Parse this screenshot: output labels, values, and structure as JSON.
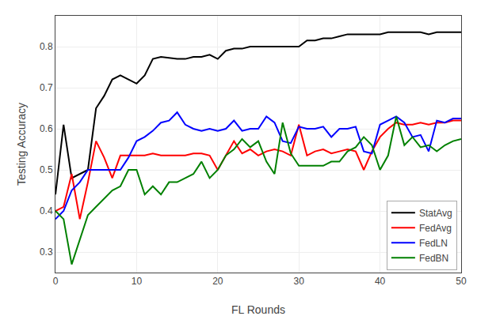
{
  "chart_data": {
    "type": "line",
    "x_label": "FL Rounds",
    "y_label": "Testing Accuracy",
    "x": [
      0,
      1,
      2,
      3,
      4,
      5,
      6,
      7,
      8,
      9,
      10,
      11,
      12,
      13,
      14,
      15,
      16,
      17,
      18,
      19,
      20,
      21,
      22,
      23,
      24,
      25,
      26,
      27,
      28,
      29,
      30,
      31,
      32,
      33,
      34,
      35,
      36,
      37,
      38,
      39,
      40,
      41,
      42,
      43,
      44,
      45,
      46,
      47,
      48,
      49,
      50
    ],
    "series": [
      {
        "name": "StatAvg",
        "color": "black",
        "values": [
          0.44,
          0.61,
          0.48,
          0.49,
          0.5,
          0.65,
          0.68,
          0.72,
          0.73,
          0.72,
          0.71,
          0.73,
          0.77,
          0.775,
          0.773,
          0.77,
          0.77,
          0.775,
          0.775,
          0.78,
          0.77,
          0.79,
          0.795,
          0.795,
          0.8,
          0.8,
          0.8,
          0.8,
          0.8,
          0.8,
          0.8,
          0.815,
          0.815,
          0.82,
          0.82,
          0.825,
          0.83,
          0.83,
          0.83,
          0.83,
          0.83,
          0.835,
          0.835,
          0.835,
          0.835,
          0.835,
          0.83,
          0.835,
          0.835,
          0.835,
          0.835
        ]
      },
      {
        "name": "FedAvg",
        "color": "red",
        "values": [
          0.4,
          0.41,
          0.49,
          0.38,
          0.47,
          0.57,
          0.53,
          0.48,
          0.535,
          0.535,
          0.535,
          0.535,
          0.54,
          0.535,
          0.535,
          0.535,
          0.535,
          0.54,
          0.54,
          0.535,
          0.5,
          0.535,
          0.57,
          0.54,
          0.55,
          0.535,
          0.545,
          0.55,
          0.545,
          0.535,
          0.61,
          0.535,
          0.545,
          0.55,
          0.54,
          0.545,
          0.55,
          0.545,
          0.5,
          0.545,
          0.58,
          0.6,
          0.615,
          0.61,
          0.61,
          0.615,
          0.61,
          0.615,
          0.615,
          0.62,
          0.62
        ]
      },
      {
        "name": "FedLN",
        "color": "blue",
        "values": [
          0.38,
          0.4,
          0.45,
          0.47,
          0.5,
          0.5,
          0.5,
          0.5,
          0.5,
          0.53,
          0.57,
          0.58,
          0.595,
          0.615,
          0.62,
          0.64,
          0.61,
          0.6,
          0.595,
          0.6,
          0.595,
          0.6,
          0.62,
          0.595,
          0.6,
          0.6,
          0.63,
          0.615,
          0.57,
          0.565,
          0.605,
          0.6,
          0.6,
          0.605,
          0.58,
          0.6,
          0.6,
          0.605,
          0.545,
          0.54,
          0.61,
          0.62,
          0.63,
          0.615,
          0.58,
          0.585,
          0.545,
          0.62,
          0.615,
          0.625,
          0.625
        ]
      },
      {
        "name": "FedBN",
        "color": "green",
        "values": [
          0.4,
          0.38,
          0.27,
          0.33,
          0.39,
          0.41,
          0.43,
          0.45,
          0.46,
          0.5,
          0.5,
          0.44,
          0.46,
          0.44,
          0.47,
          0.47,
          0.48,
          0.49,
          0.52,
          0.48,
          0.5,
          0.535,
          0.55,
          0.575,
          0.555,
          0.57,
          0.52,
          0.49,
          0.615,
          0.54,
          0.51,
          0.51,
          0.51,
          0.51,
          0.52,
          0.52,
          0.545,
          0.555,
          0.58,
          0.56,
          0.5,
          0.535,
          0.63,
          0.56,
          0.58,
          0.555,
          0.56,
          0.545,
          0.56,
          0.57,
          0.575
        ]
      }
    ],
    "xlim": [
      0,
      50
    ],
    "ylim": [
      0.25,
      0.875
    ],
    "xticks": [
      0,
      10,
      20,
      30,
      40,
      50
    ],
    "yticks": [
      0.3,
      0.4,
      0.5,
      0.6,
      0.7,
      0.8
    ],
    "grid": true,
    "legend": "lower right"
  }
}
